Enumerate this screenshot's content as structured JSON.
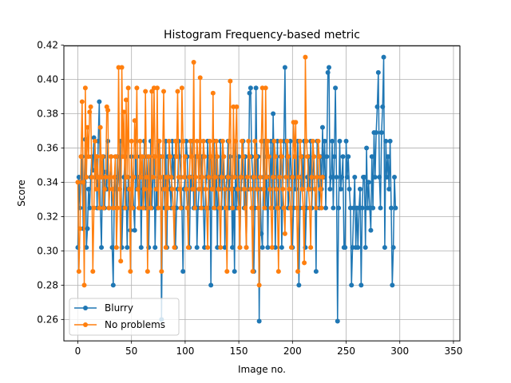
{
  "chart_data": {
    "type": "line",
    "title": "Histogram Frequency-based metric",
    "xlabel": "Image no.",
    "ylabel": "Score",
    "xlim": [
      -13,
      356
    ],
    "ylim": [
      0.2475,
      0.4195
    ],
    "xticks": [
      0,
      50,
      100,
      150,
      200,
      250,
      300,
      350
    ],
    "yticks": [
      0.26,
      0.28,
      0.3,
      0.32,
      0.34,
      0.36,
      0.38,
      0.4,
      0.42
    ],
    "grid": true,
    "legend": "bottom-left",
    "series": [
      {
        "name": "Blurry",
        "color": "#1f77b4",
        "values": [
          0.302,
          0.343,
          0.325,
          0.34,
          0.355,
          0.313,
          0.34,
          0.365,
          0.302,
          0.313,
          0.336,
          0.325,
          0.343,
          0.355,
          0.347,
          0.366,
          0.343,
          0.355,
          0.325,
          0.364,
          0.387,
          0.325,
          0.302,
          0.343,
          0.355,
          0.325,
          0.346,
          0.336,
          0.364,
          0.325,
          0.343,
          0.355,
          0.302,
          0.28,
          0.336,
          0.343,
          0.325,
          0.355,
          0.343,
          0.336,
          0.364,
          0.302,
          0.325,
          0.343,
          0.355,
          0.336,
          0.302,
          0.343,
          0.325,
          0.312,
          0.355,
          0.343,
          0.325,
          0.312,
          0.364,
          0.336,
          0.343,
          0.325,
          0.355,
          0.302,
          0.343,
          0.336,
          0.364,
          0.325,
          0.355,
          0.343,
          0.302,
          0.336,
          0.364,
          0.325,
          0.343,
          0.355,
          0.302,
          0.336,
          0.325,
          0.364,
          0.343,
          0.355,
          0.26,
          0.336,
          0.343,
          0.325,
          0.364,
          0.302,
          0.355,
          0.343,
          0.336,
          0.325,
          0.364,
          0.343,
          0.355,
          0.302,
          0.325,
          0.336,
          0.364,
          0.355,
          0.343,
          0.325,
          0.288,
          0.336,
          0.343,
          0.364,
          0.355,
          0.325,
          0.302,
          0.343,
          0.336,
          0.364,
          0.325,
          0.343,
          0.355,
          0.302,
          0.325,
          0.336,
          0.364,
          0.343,
          0.355,
          0.325,
          0.302,
          0.336,
          0.343,
          0.364,
          0.325,
          0.355,
          0.28,
          0.343,
          0.336,
          0.364,
          0.325,
          0.355,
          0.302,
          0.343,
          0.336,
          0.364,
          0.325,
          0.343,
          0.355,
          0.302,
          0.336,
          0.343,
          0.364,
          0.325,
          0.355,
          0.343,
          0.302,
          0.336,
          0.288,
          0.364,
          0.325,
          0.343,
          0.355,
          0.302,
          0.336,
          0.343,
          0.364,
          0.325,
          0.355,
          0.302,
          0.343,
          0.336,
          0.392,
          0.395,
          0.355,
          0.343,
          0.288,
          0.325,
          0.395,
          0.343,
          0.355,
          0.259,
          0.336,
          0.31,
          0.302,
          0.343,
          0.364,
          0.325,
          0.355,
          0.302,
          0.343,
          0.336,
          0.364,
          0.325,
          0.38,
          0.343,
          0.302,
          0.336,
          0.364,
          0.325,
          0.343,
          0.355,
          0.302,
          0.336,
          0.364,
          0.407,
          0.343,
          0.355,
          0.325,
          0.336,
          0.364,
          0.343,
          0.302,
          0.325,
          0.355,
          0.336,
          0.343,
          0.364,
          0.28,
          0.325,
          0.343,
          0.355,
          0.336,
          0.364,
          0.302,
          0.325,
          0.343,
          0.355,
          0.336,
          0.364,
          0.325,
          0.343,
          0.355,
          0.336,
          0.288,
          0.364,
          0.343,
          0.325,
          0.355,
          0.336,
          0.372,
          0.343,
          0.364,
          0.325,
          0.355,
          0.404,
          0.407,
          0.336,
          0.343,
          0.364,
          0.325,
          0.355,
          0.395,
          0.343,
          0.259,
          0.325,
          0.364,
          0.336,
          0.343,
          0.355,
          0.302,
          0.302,
          0.364,
          0.343,
          0.355,
          0.336,
          0.325,
          0.28,
          0.302,
          0.325,
          0.343,
          0.302,
          0.325,
          0.302,
          0.325,
          0.336,
          0.28,
          0.325,
          0.343,
          0.343,
          0.302,
          0.36,
          0.325,
          0.34,
          0.325,
          0.312,
          0.355,
          0.325,
          0.369,
          0.343,
          0.369,
          0.384,
          0.404,
          0.343,
          0.325,
          0.369,
          0.384,
          0.413,
          0.302,
          0.364,
          0.343,
          0.355,
          0.336,
          0.364,
          0.325,
          0.28,
          0.302,
          0.343,
          0.325
        ]
      },
      {
        "name": "No problems",
        "color": "#ff7f0e",
        "values": [
          0.34,
          0.288,
          0.313,
          0.355,
          0.387,
          0.34,
          0.28,
          0.395,
          0.343,
          0.372,
          0.355,
          0.381,
          0.384,
          0.343,
          0.288,
          0.325,
          0.364,
          0.336,
          0.355,
          0.343,
          0.325,
          0.372,
          0.343,
          0.355,
          0.325,
          0.336,
          0.343,
          0.384,
          0.382,
          0.325,
          0.343,
          0.355,
          0.336,
          0.325,
          0.343,
          0.355,
          0.302,
          0.325,
          0.407,
          0.336,
          0.294,
          0.407,
          0.355,
          0.381,
          0.325,
          0.388,
          0.343,
          0.395,
          0.336,
          0.288,
          0.364,
          0.325,
          0.343,
          0.376,
          0.355,
          0.395,
          0.336,
          0.325,
          0.364,
          0.343,
          0.355,
          0.325,
          0.336,
          0.393,
          0.343,
          0.288,
          0.355,
          0.336,
          0.325,
          0.393,
          0.343,
          0.395,
          0.355,
          0.336,
          0.395,
          0.325,
          0.364,
          0.343,
          0.288,
          0.355,
          0.393,
          0.336,
          0.302,
          0.343,
          0.325,
          0.364,
          0.355,
          0.343,
          0.336,
          0.325,
          0.302,
          0.364,
          0.355,
          0.393,
          0.343,
          0.336,
          0.325,
          0.395,
          0.364,
          0.343,
          0.355,
          0.336,
          0.325,
          0.302,
          0.343,
          0.364,
          0.355,
          0.336,
          0.41,
          0.325,
          0.343,
          0.364,
          0.355,
          0.336,
          0.401,
          0.325,
          0.343,
          0.364,
          0.355,
          0.336,
          0.325,
          0.302,
          0.343,
          0.364,
          0.355,
          0.336,
          0.392,
          0.325,
          0.343,
          0.364,
          0.355,
          0.336,
          0.325,
          0.302,
          0.343,
          0.364,
          0.355,
          0.336,
          0.325,
          0.288,
          0.343,
          0.364,
          0.399,
          0.336,
          0.325,
          0.384,
          0.343,
          0.364,
          0.384,
          0.336,
          0.325,
          0.302,
          0.343,
          0.364,
          0.355,
          0.336,
          0.325,
          0.302,
          0.343,
          0.364,
          0.355,
          0.336,
          0.325,
          0.288,
          0.343,
          0.364,
          0.355,
          0.336,
          0.325,
          0.28,
          0.343,
          0.364,
          0.395,
          0.336,
          0.325,
          0.395,
          0.343,
          0.364,
          0.355,
          0.336,
          0.325,
          0.302,
          0.343,
          0.364,
          0.355,
          0.336,
          0.325,
          0.288,
          0.343,
          0.364,
          0.355,
          0.336,
          0.325,
          0.31,
          0.343,
          0.364,
          0.355,
          0.336,
          0.325,
          0.302,
          0.343,
          0.375,
          0.355,
          0.375,
          0.325,
          0.288,
          0.343,
          0.364,
          0.355,
          0.336,
          0.325,
          0.293,
          0.413,
          0.364,
          0.355,
          0.336,
          0.325,
          0.302,
          0.343,
          0.364,
          0.355,
          0.336,
          0.325,
          0.343,
          0.364,
          0.355,
          0.336,
          0.325,
          0.343
        ]
      }
    ]
  }
}
